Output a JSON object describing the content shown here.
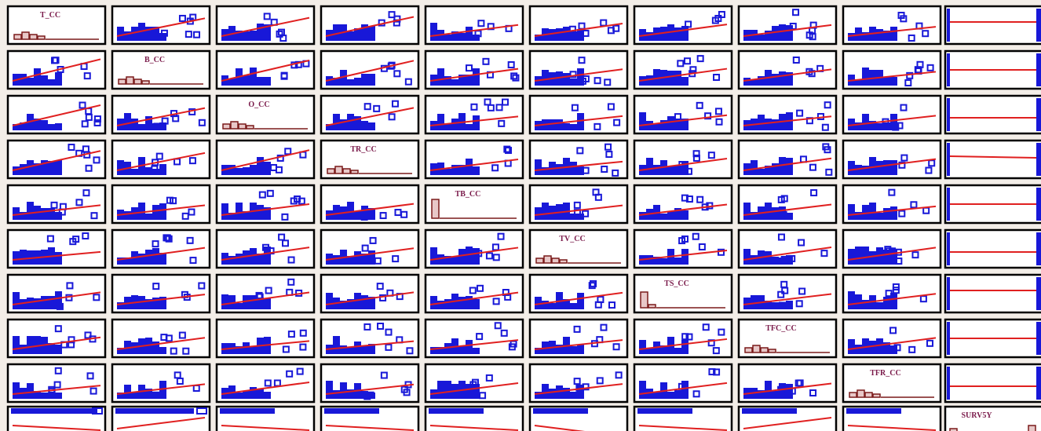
{
  "chart_data": {
    "type": "scatter-matrix",
    "variables": [
      "T_CC",
      "B_CC",
      "O_CC",
      "TR_CC",
      "TB_CC",
      "TV_CC",
      "TS_CC",
      "TFC_CC",
      "TFR_CC",
      "SURV5Y"
    ],
    "diagonal": "histogram",
    "off_diagonal": "scatter with red linear fit line",
    "last_variable_binary": true
  },
  "colors": {
    "background": "#f3eee8",
    "panel_fill": "#ffffff",
    "panel_border": "#000000",
    "points": "#1818d8",
    "fit_line": "#e02020",
    "hist_fill": "#e8c8c8",
    "hist_stroke": "#7a1a1a",
    "diag_label": "#7a1a4a"
  }
}
